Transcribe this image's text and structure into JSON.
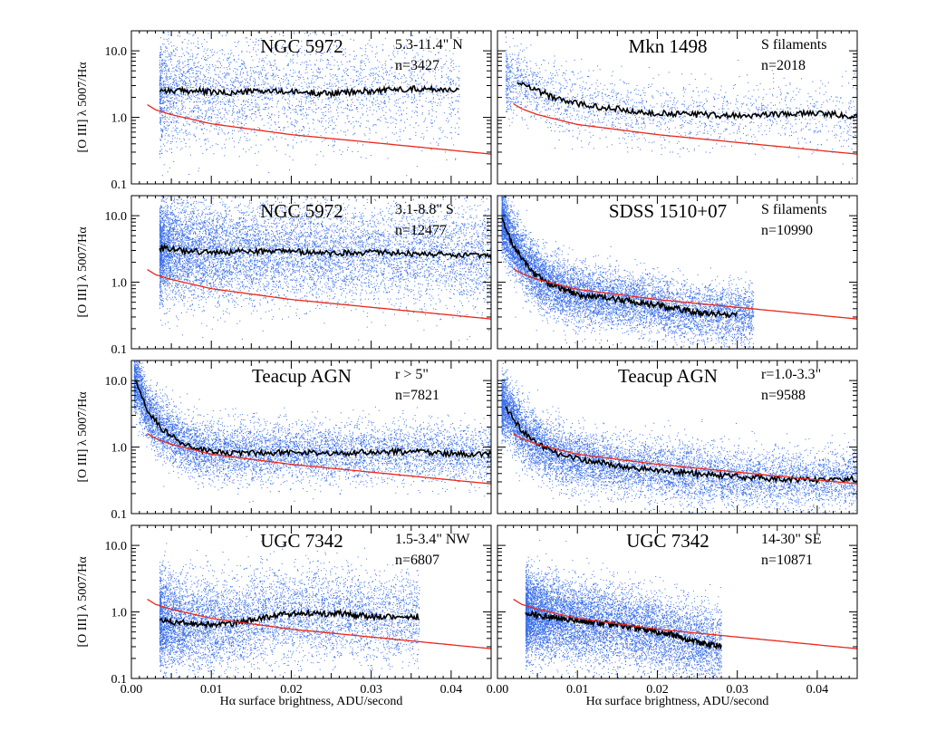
{
  "chart_data": {
    "type": "scatter",
    "layout": "4 rows x 2 columns, shared x axis",
    "xlabel": "Hα surface brightness, ADU/second",
    "ylabel": "[O III] λ 5007/Hα",
    "x_range": [
      0.0,
      0.045
    ],
    "y_range": [
      0.1,
      20
    ],
    "y_scale": "log",
    "x_ticks": [
      0.0,
      0.01,
      0.02,
      0.03,
      0.04
    ],
    "x_tick_labels": [
      "0.00",
      "0.01",
      "0.02",
      "0.03",
      "0.04"
    ],
    "y_ticks": [
      0.1,
      1.0,
      10.0
    ],
    "y_tick_labels": [
      "0.1",
      "1.0",
      "10.0"
    ],
    "colors": {
      "points": "#3a6fe8",
      "running_median": "#000000",
      "model_curve": "#e8281c"
    },
    "panels": [
      {
        "title": "NGC 5972",
        "region": "5.3-11.4\" N",
        "count": "n=3427",
        "n_points": 3427,
        "x_min": 0.0035,
        "x_max": 0.041,
        "scatter_dex": 0.42,
        "median": [
          [
            0.0035,
            2.6
          ],
          [
            0.005,
            2.5
          ],
          [
            0.008,
            2.5
          ],
          [
            0.012,
            2.3
          ],
          [
            0.016,
            2.5
          ],
          [
            0.02,
            2.4
          ],
          [
            0.025,
            2.3
          ],
          [
            0.03,
            2.5
          ],
          [
            0.035,
            2.7
          ],
          [
            0.041,
            2.6
          ]
        ]
      },
      {
        "title": "Mkn 1498",
        "region": "S filaments",
        "count": "n=2018",
        "n_points": 2018,
        "x_min": 0.001,
        "x_max": 0.045,
        "scatter_dex": 0.25,
        "median": [
          [
            0.0025,
            3.5
          ],
          [
            0.005,
            2.5
          ],
          [
            0.008,
            1.8
          ],
          [
            0.01,
            1.6
          ],
          [
            0.013,
            1.4
          ],
          [
            0.016,
            1.3
          ],
          [
            0.02,
            1.15
          ],
          [
            0.025,
            1.1
          ],
          [
            0.03,
            1.05
          ],
          [
            0.035,
            1.1
          ],
          [
            0.04,
            1.15
          ],
          [
            0.045,
            1.05
          ]
        ]
      },
      {
        "title": "NGC 5972",
        "region": "3.1-8.8\" S",
        "count": "n=12477",
        "n_points": 12477,
        "x_min": 0.0035,
        "x_max": 0.045,
        "scatter_dex": 0.38,
        "median": [
          [
            0.0035,
            3.3
          ],
          [
            0.006,
            3.0
          ],
          [
            0.01,
            2.8
          ],
          [
            0.015,
            2.9
          ],
          [
            0.02,
            2.9
          ],
          [
            0.025,
            2.7
          ],
          [
            0.03,
            2.8
          ],
          [
            0.035,
            2.7
          ],
          [
            0.04,
            2.6
          ],
          [
            0.045,
            2.4
          ]
        ]
      },
      {
        "title": "SDSS 1510+07",
        "region": "S filaments",
        "count": "n=10990",
        "n_points": 10990,
        "x_min": 0.0005,
        "x_max": 0.032,
        "scatter_dex": 0.22,
        "median": [
          [
            0.0005,
            9.0
          ],
          [
            0.002,
            3.5
          ],
          [
            0.004,
            1.6
          ],
          [
            0.006,
            1.0
          ],
          [
            0.008,
            0.8
          ],
          [
            0.01,
            0.65
          ],
          [
            0.015,
            0.55
          ],
          [
            0.02,
            0.45
          ],
          [
            0.025,
            0.35
          ],
          [
            0.03,
            0.32
          ]
        ]
      },
      {
        "title": "Teacup AGN",
        "region": "r > 5\"",
        "count": "n=7821",
        "n_points": 7821,
        "x_min": 0.0003,
        "x_max": 0.045,
        "scatter_dex": 0.22,
        "median": [
          [
            0.0005,
            10.0
          ],
          [
            0.002,
            3.5
          ],
          [
            0.004,
            1.8
          ],
          [
            0.006,
            1.2
          ],
          [
            0.008,
            0.95
          ],
          [
            0.01,
            0.85
          ],
          [
            0.015,
            0.8
          ],
          [
            0.02,
            0.85
          ],
          [
            0.025,
            0.8
          ],
          [
            0.03,
            0.85
          ],
          [
            0.035,
            0.85
          ],
          [
            0.04,
            0.8
          ],
          [
            0.045,
            0.78
          ]
        ]
      },
      {
        "title": "Teacup AGN",
        "region": "r=1.0-3.3\"",
        "count": "n=9588",
        "n_points": 9588,
        "x_min": 0.0005,
        "x_max": 0.045,
        "scatter_dex": 0.22,
        "median": [
          [
            0.001,
            4.0
          ],
          [
            0.003,
            1.8
          ],
          [
            0.005,
            1.1
          ],
          [
            0.008,
            0.75
          ],
          [
            0.012,
            0.6
          ],
          [
            0.016,
            0.5
          ],
          [
            0.02,
            0.45
          ],
          [
            0.025,
            0.4
          ],
          [
            0.03,
            0.36
          ],
          [
            0.035,
            0.33
          ],
          [
            0.04,
            0.32
          ],
          [
            0.045,
            0.33
          ]
        ]
      },
      {
        "title": "UGC 7342",
        "region": "1.5-3.4\" NW",
        "count": "n=6807",
        "n_points": 6807,
        "x_min": 0.0035,
        "x_max": 0.036,
        "scatter_dex": 0.35,
        "median": [
          [
            0.0035,
            0.75
          ],
          [
            0.006,
            0.7
          ],
          [
            0.009,
            0.65
          ],
          [
            0.012,
            0.65
          ],
          [
            0.015,
            0.75
          ],
          [
            0.018,
            0.9
          ],
          [
            0.022,
            0.95
          ],
          [
            0.026,
            0.95
          ],
          [
            0.03,
            0.85
          ],
          [
            0.036,
            0.85
          ]
        ]
      },
      {
        "title": "UGC 7342",
        "region": "14-30\" SE",
        "count": "n=10871",
        "n_points": 10871,
        "x_min": 0.0035,
        "x_max": 0.028,
        "scatter_dex": 0.3,
        "median": [
          [
            0.0035,
            0.95
          ],
          [
            0.006,
            0.85
          ],
          [
            0.01,
            0.75
          ],
          [
            0.014,
            0.65
          ],
          [
            0.018,
            0.55
          ],
          [
            0.022,
            0.45
          ],
          [
            0.025,
            0.35
          ],
          [
            0.028,
            0.3
          ]
        ]
      }
    ],
    "model_curves": [
      {
        "panels": [
          0,
          2,
          6,
          7
        ],
        "points": [
          [
            0.002,
            1.55
          ],
          [
            0.003,
            1.3
          ],
          [
            0.005,
            1.1
          ],
          [
            0.01,
            0.8
          ],
          [
            0.02,
            0.55
          ],
          [
            0.03,
            0.42
          ],
          [
            0.045,
            0.28
          ]
        ]
      },
      {
        "panels": [
          1,
          3,
          4,
          5
        ],
        "points": [
          [
            0.002,
            1.6
          ],
          [
            0.003,
            1.35
          ],
          [
            0.005,
            1.1
          ],
          [
            0.01,
            0.78
          ],
          [
            0.02,
            0.55
          ],
          [
            0.03,
            0.42
          ],
          [
            0.045,
            0.28
          ]
        ]
      }
    ]
  }
}
